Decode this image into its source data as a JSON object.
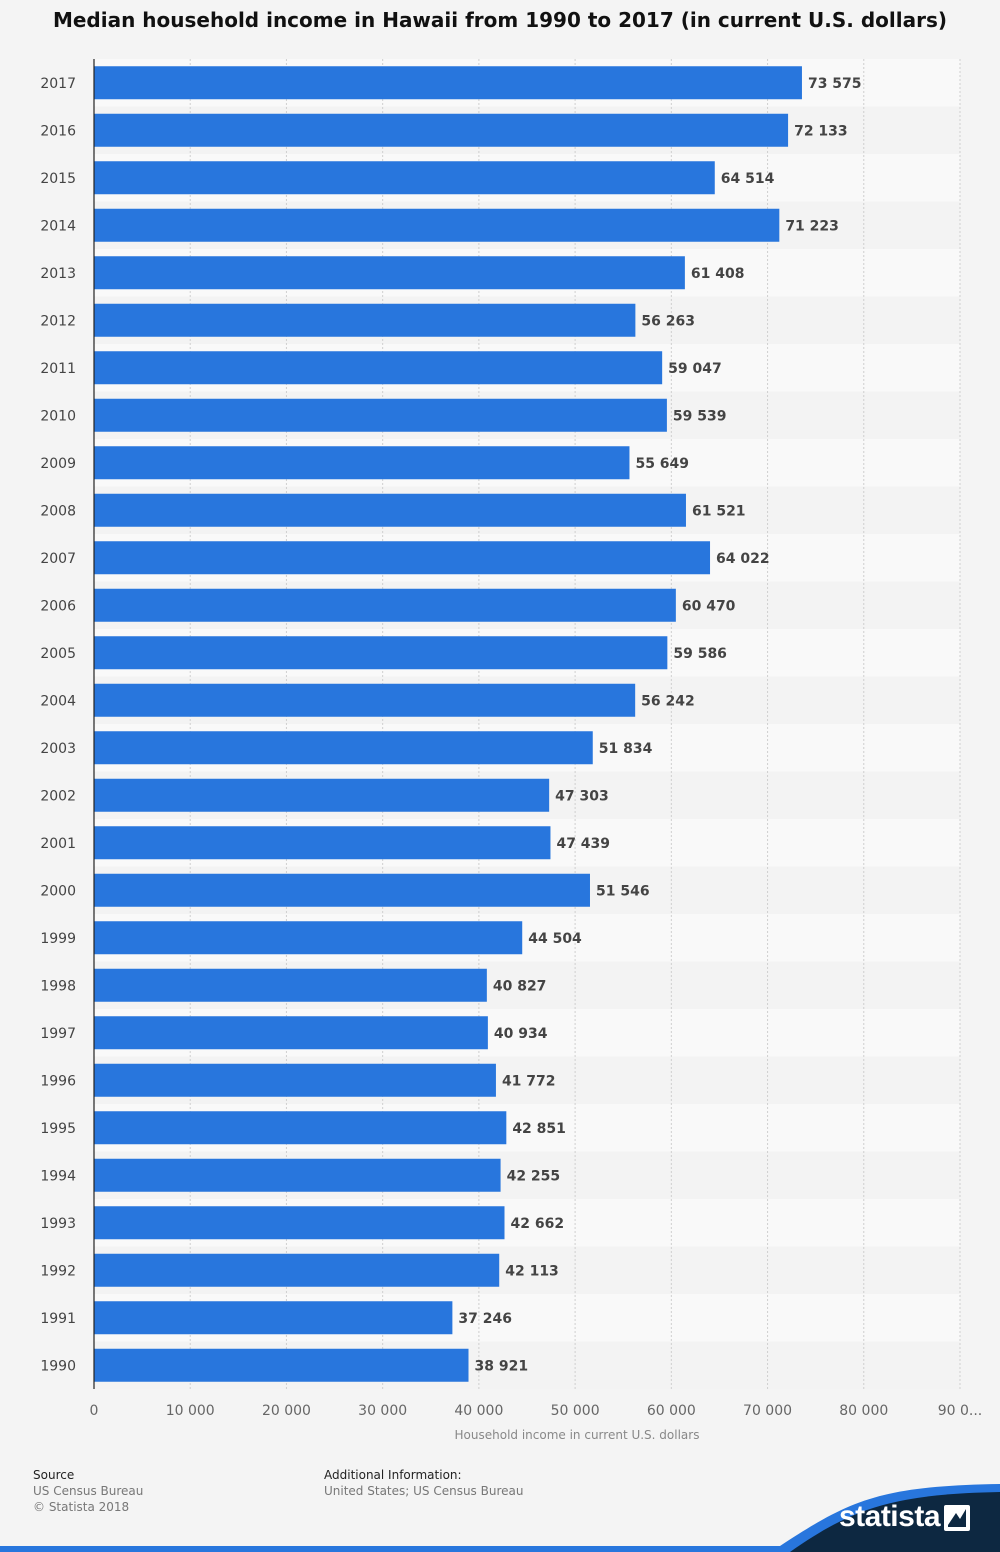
{
  "chart_data": {
    "type": "bar",
    "orientation": "horizontal",
    "title": "Median household income in Hawaii from 1990 to 2017 (in current U.S. dollars)",
    "xlabel": "Household income in current U.S. dollars",
    "ylabel": "",
    "xlim": [
      0,
      90000
    ],
    "x_ticks": [
      "0",
      "10 000",
      "20 000",
      "30 000",
      "40 000",
      "50 000",
      "60 000",
      "70 000",
      "80 000",
      "90 0..."
    ],
    "categories": [
      "2017",
      "2016",
      "2015",
      "2014",
      "2013",
      "2012",
      "2011",
      "2010",
      "2009",
      "2008",
      "2007",
      "2006",
      "2005",
      "2004",
      "2003",
      "2002",
      "2001",
      "2000",
      "1999",
      "1998",
      "1997",
      "1996",
      "1995",
      "1994",
      "1993",
      "1992",
      "1991",
      "1990"
    ],
    "values": [
      73575,
      72133,
      64514,
      71223,
      61408,
      56263,
      59047,
      59539,
      55649,
      61521,
      64022,
      60470,
      59586,
      56242,
      51834,
      47303,
      47439,
      51546,
      44504,
      40827,
      40934,
      41772,
      42851,
      42255,
      42662,
      42113,
      37246,
      38921
    ],
    "value_labels": [
      "73 575",
      "72 133",
      "64 514",
      "71 223",
      "61 408",
      "56 263",
      "59 047",
      "59 539",
      "55 649",
      "61 521",
      "64 022",
      "60 470",
      "59 586",
      "56 242",
      "51 834",
      "47 303",
      "47 439",
      "51 546",
      "44 504",
      "40 827",
      "40 934",
      "41 772",
      "42 851",
      "42 255",
      "42 662",
      "42 113",
      "37 246",
      "38 921"
    ],
    "bar_color": "#2876dd",
    "grid": true,
    "legend": "none"
  },
  "footer": {
    "source_label": "Source",
    "source_line1": "US Census Bureau",
    "source_line2": "© Statista 2018",
    "info_label": "Additional Information:",
    "info_line1": "United States; US Census Bureau"
  },
  "brand": {
    "name": "statista",
    "color_dark": "#0d2841",
    "color_accent": "#2876dd"
  }
}
